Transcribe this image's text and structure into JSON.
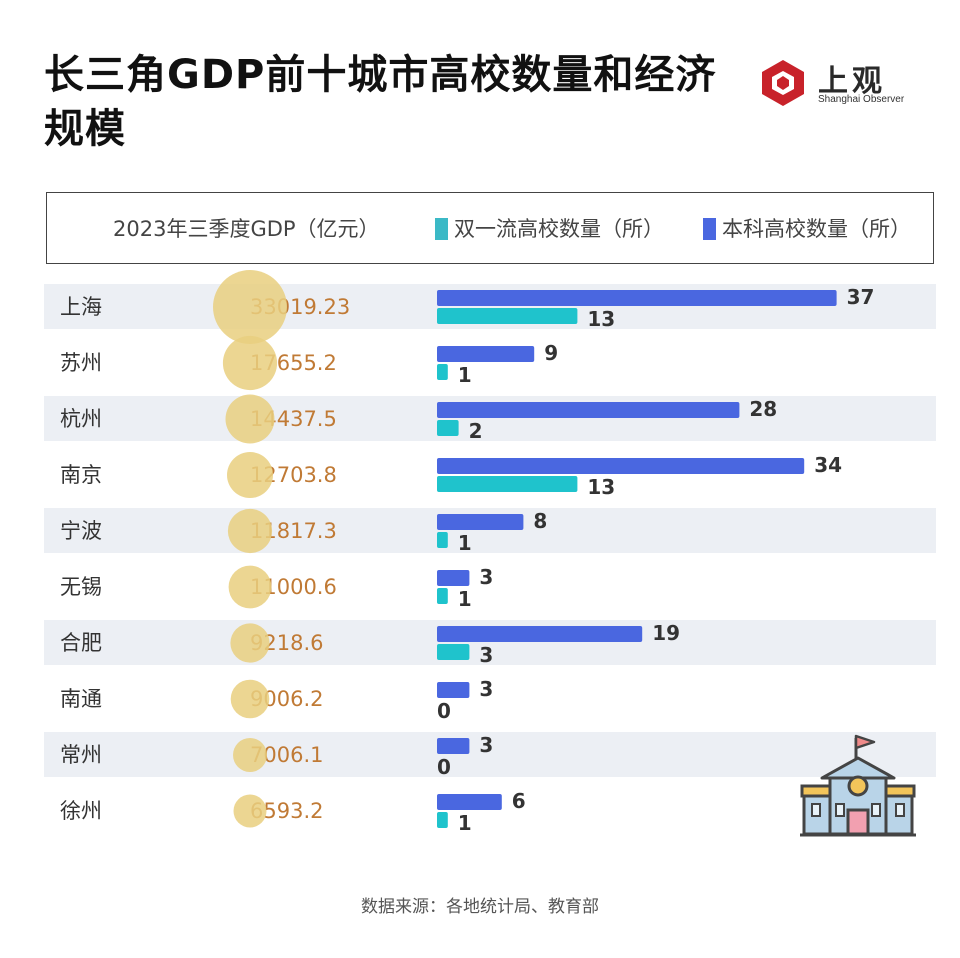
{
  "title": "长三角GDP前十城市高校数量和经济规模",
  "logo": {
    "cn": "上观",
    "en": "Shanghai Observer"
  },
  "legend": {
    "gdp_label": "2023年三季度GDP（亿元）",
    "double_first_label": "双一流高校数量（所）",
    "undergrad_label": "本科高校数量（所）"
  },
  "colors": {
    "undergrad_bar": "#4a67e0",
    "double_first_bar": "#1fc3cc",
    "gdp_bubble": "#e9cf7f",
    "gdp_text": "#c07a35",
    "row_band": "#eceff4"
  },
  "source": "数据来源：各地统计局、教育部",
  "chart_data": {
    "type": "bar",
    "categories": [
      "上海",
      "苏州",
      "杭州",
      "南京",
      "宁波",
      "无锡",
      "合肥",
      "南通",
      "常州",
      "徐州"
    ],
    "gdp": [
      "33019.23",
      "17655.2",
      "14437.5",
      "12703.8",
      "11817.3",
      "11000.6",
      "9218.6",
      "9006.2",
      "7006.1",
      "6593.2"
    ],
    "series": [
      {
        "name": "本科高校数量（所）",
        "values": [
          37,
          9,
          28,
          34,
          8,
          3,
          19,
          3,
          3,
          6
        ]
      },
      {
        "name": "双一流高校数量（所）",
        "values": [
          13,
          1,
          2,
          13,
          1,
          1,
          3,
          0,
          0,
          1
        ]
      }
    ]
  }
}
